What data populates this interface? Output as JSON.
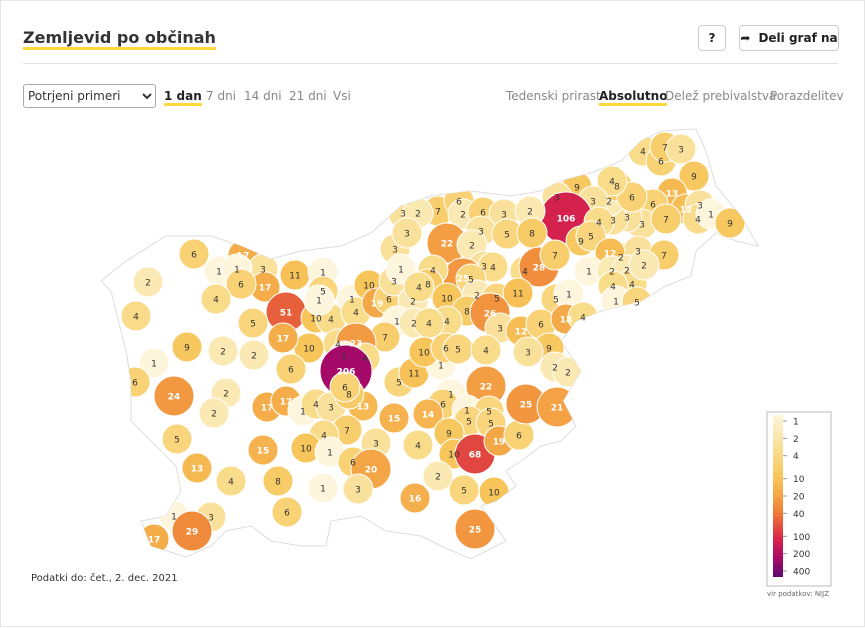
{
  "header": {
    "title": "Zemljevid po občinah",
    "help": "?",
    "share": "Deli graf na"
  },
  "controls": {
    "measure": "Potrjeni primeri",
    "periods": [
      "1 dan",
      "7 dni",
      "14 dni",
      "21 dni",
      "Vsi"
    ],
    "active_period": 0,
    "views": [
      "Tedenski prirast",
      "Absolutno",
      "Delež prebivalstva",
      "Porazdelitev"
    ],
    "active_view": 1
  },
  "map": {
    "regions": [
      4,
      6,
      7,
      3,
      9,
      13,
      12,
      3,
      4,
      1,
      9,
      6,
      3,
      3,
      3,
      2,
      8,
      6,
      4,
      9,
      3,
      3,
      106,
      4,
      9,
      5,
      2,
      3,
      12,
      1,
      2,
      2,
      4,
      4,
      1,
      7,
      7,
      2,
      5,
      7,
      6,
      2,
      6,
      3,
      3,
      5,
      2,
      8,
      22,
      2,
      3,
      25,
      4,
      4,
      28,
      7,
      3,
      2,
      3,
      3,
      4,
      8,
      10,
      5,
      2,
      5,
      11,
      5,
      1,
      8,
      26,
      4,
      3,
      12,
      6,
      18,
      4,
      9,
      2,
      2,
      3,
      17,
      3,
      1,
      17,
      11,
      1,
      5,
      51,
      10,
      4,
      1,
      1,
      4,
      10,
      19,
      6,
      3,
      1,
      2,
      4,
      1,
      2,
      4,
      7,
      4,
      23,
      4,
      1,
      6,
      1,
      6,
      2,
      4,
      5,
      4,
      9,
      2,
      2,
      10,
      17,
      6,
      1,
      6,
      24,
      2,
      2,
      5,
      17,
      17,
      1,
      4,
      3,
      206,
      5,
      11,
      1,
      10,
      6,
      5,
      4,
      22,
      1,
      6,
      1,
      5,
      5,
      5,
      14,
      15,
      13,
      8,
      6,
      7,
      4,
      3,
      4,
      9,
      10,
      68,
      19,
      6,
      25,
      21,
      2,
      13,
      15,
      10,
      1,
      6,
      20,
      4,
      8,
      1,
      3,
      16,
      5,
      10,
      6,
      3,
      1,
      29,
      17,
      25
    ],
    "footnote": "Podatki do: čet., 2. dec. 2021"
  },
  "legend": {
    "ticks": [
      1,
      2,
      4,
      10,
      20,
      40,
      100,
      200,
      400
    ],
    "colors": [
      "#fdf5dc",
      "#fbe9b4",
      "#f9dc8a",
      "#f7c55a",
      "#f4a545",
      "#ee7535",
      "#d8234a",
      "#a80a68",
      "#5c0a70"
    ],
    "source": "vir podatkov: NIJZ"
  }
}
